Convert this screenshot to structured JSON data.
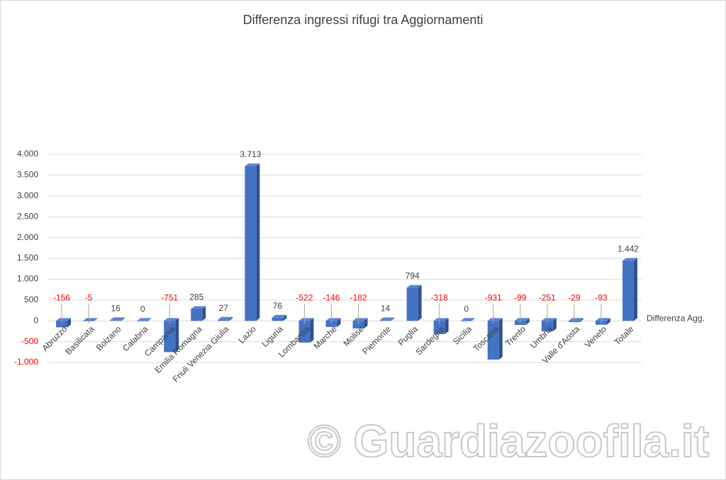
{
  "chart_data": {
    "type": "bar",
    "title": "Differenza ingressi rifugi tra Aggiornamenti",
    "categories": [
      "Abruzzo",
      "Basilicata",
      "Bolzano",
      "Calabria",
      "Campania",
      "Emilia Romagna",
      "Friuli Venezia Giulia",
      "Lazio",
      "Liguria",
      "Lombardia",
      "Marche",
      "Molise",
      "Piemonte",
      "Puglia",
      "Sardegna",
      "Sicilia",
      "Toscana",
      "Trento",
      "Umbria",
      "Valle d'Aosta",
      "Veneto",
      "Totale"
    ],
    "series": [
      {
        "name": "Differenza Agg.",
        "color": "#4472c4",
        "values": [
          -156,
          -5,
          16,
          0,
          -751,
          285,
          27,
          3713,
          76,
          -522,
          -146,
          -182,
          14,
          794,
          -318,
          0,
          -931,
          -99,
          -251,
          -29,
          -93,
          1442
        ],
        "value_labels": [
          "-156",
          "-5",
          "16",
          "0",
          "-751",
          "285",
          "27",
          "3.713",
          "76",
          "-522",
          "-146",
          "-182",
          "14",
          "794",
          "-318",
          "0",
          "-931",
          "-99",
          "-251",
          "-29",
          "-93",
          "1.442"
        ]
      }
    ],
    "ylim": [
      -1000,
      4000
    ],
    "yticks": [
      {
        "value": -1000,
        "label": "-1.000"
      },
      -500,
      0,
      500,
      {
        "value": 1000,
        "label": "1.000"
      },
      {
        "value": 1500,
        "label": "1.500"
      },
      {
        "value": 2000,
        "label": "2.000"
      },
      {
        "value": 2500,
        "label": "2.500"
      },
      {
        "value": 3000,
        "label": "3.000"
      },
      {
        "value": 3500,
        "label": "3.500"
      },
      {
        "value": 4000,
        "label": "4.000"
      }
    ],
    "grid": true,
    "negative_color": "#ff0000",
    "legend": "right",
    "watermark": "© Guardiazoofila.it"
  }
}
